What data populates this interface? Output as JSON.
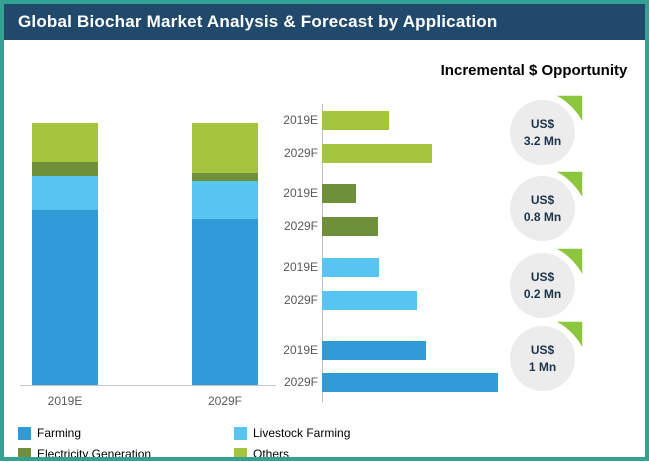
{
  "header": {
    "title": "Global Biochar Market Analysis & Forecast by Application"
  },
  "right_panel": {
    "title": "Incremental $ Opportunity"
  },
  "chart_data": [
    {
      "type": "bar",
      "subtype": "stacked-column",
      "categories": [
        "2019E",
        "2029F"
      ],
      "value_scale": "relative (no numeric axis shown in image)",
      "series": [
        {
          "name": "Farming",
          "color": "#2e9bd6",
          "values": [
            175,
            166
          ]
        },
        {
          "name": "Livestock Farming",
          "color": "#56c5f2",
          "values": [
            34,
            38
          ]
        },
        {
          "name": "Electricity Generation",
          "color": "#6f8f3a",
          "values": [
            14,
            8
          ]
        },
        {
          "name": "Others",
          "color": "#a5c43d",
          "values": [
            39,
            50
          ]
        }
      ],
      "legend_position": "bottom",
      "grid": false
    },
    {
      "type": "bar",
      "subtype": "horizontal-grouped",
      "bar_labels": [
        "2019E",
        "2029F"
      ],
      "value_scale": "relative (no numeric axis shown in image)",
      "groups": [
        {
          "name": "Others",
          "color": "#a5c43d",
          "values": [
            67,
            110
          ]
        },
        {
          "name": "Electricity Generation",
          "color": "#6f8f3a",
          "values": [
            34,
            56
          ]
        },
        {
          "name": "Livestock Farming",
          "color": "#56c5f2",
          "values": [
            57,
            95
          ]
        },
        {
          "name": "Farming",
          "color": "#2e9bd6",
          "values": [
            104,
            176
          ]
        }
      ],
      "grid": false
    }
  ],
  "badges": [
    {
      "currency": "US$",
      "amount": "3.2 Mn"
    },
    {
      "currency": "US$",
      "amount": "0.8 Mn"
    },
    {
      "currency": "US$",
      "amount": "0.2 Mn"
    },
    {
      "currency": "US$",
      "amount": "1 Mn"
    }
  ],
  "legend": {
    "items": [
      {
        "label": "Farming",
        "color": "#2e9bd6"
      },
      {
        "label": "Livestock Farming",
        "color": "#56c5f2"
      },
      {
        "label": "Electricity Generation",
        "color": "#6f8f3a"
      },
      {
        "label": "Others",
        "color": "#a5c43d"
      }
    ]
  },
  "colors": {
    "frame_border": "#33a295",
    "titlebar_bg": "#21496b",
    "badge_bg": "#ececec",
    "leaf_green": "#8cc63e"
  }
}
